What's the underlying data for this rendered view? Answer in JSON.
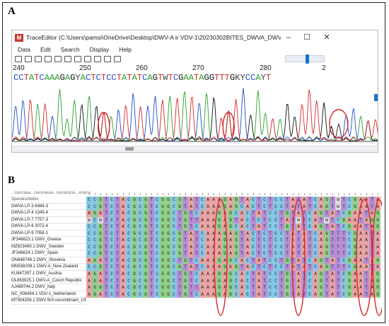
{
  "figure": {
    "panel_a_label": "A",
    "panel_b_label": "B"
  },
  "trace_editor": {
    "window_title": "TraceEditor (C:\\Users\\pamsi\\OneDrive\\Desktop\\DWV-A ir VDV-1\\20230302BITES_DWVA_DWVB\\A1_DW...",
    "app_icon_label": "M",
    "controls": {
      "minimize": "–",
      "maximize": "☐",
      "close": "✕"
    },
    "menu": [
      "Data",
      "Edit",
      "Search",
      "Display",
      "Help"
    ],
    "toolbar_icons": [
      "open-icon",
      "save-icon",
      "print-icon",
      "print-preview-icon",
      "revert-icon",
      "undo-icon",
      "redo-icon",
      "find-icon",
      "replace-icon",
      "edit-icon",
      "help-icon"
    ],
    "ruler_labels": [
      "240",
      "250",
      "260",
      "270",
      "280",
      "2"
    ],
    "sequence": "CCTATCAAAGAGYACTCTCCTATATCAGTWTCGAATAGGTTTGKYCCAYT"
  },
  "colors": {
    "A": "#2ca02c",
    "C": "#1f4fd1",
    "G": "#111111",
    "T": "#d62728",
    "ambiguous": "#444444",
    "highlight": "#d62728"
  },
  "alignment": {
    "cut_header": "...ilaricaaa...naraneiaa...vananana...enana",
    "column_header": "Species/Abbrv",
    "sequence_names": [
      "DWVA LP-3 6484-3",
      "DWVA LP-4 1345-4",
      "DWVA LP-7 7757-3",
      "DWVA LP-8 3072-4",
      "DWVA LP-9 7058-1",
      "JF346623.1 DWV_Greece",
      "MZ823490.1 DWV_Sweden",
      "JF346624.1 DWV_Spain",
      "ON648748.1 DWV_Slovenia",
      "MN538208.1 DWV-A_New Zealand",
      "KU847397.1 DWV_Austria",
      "OL863925.1 DWV-A_Czech Republic",
      "AJ489744.2 DWV_Italy",
      "NC_006494.1 VDV-1_Netherlands",
      "MT904256.1 DWV B/A recombinant_USA"
    ],
    "sequences": [
      "CCGTCTACGCGTCGGCGTATCAAAGAGTACTCTCCTATATCAGTWTCGAATAGGTTTGKYCCAYTGTT",
      "CCGTCTACGCGTCGGCGTATCAAAGAGCACTCTCCTATATCAGTWTCGAATAGGTTTGKYCCAYTGTT",
      "AGATCTACGCGTCGGCTGTCAAAGAGCACTATCCTGTATCAGTATCGAATAGGTTTGATCCGTTGTT",
      "WCWTCTACGCGTCGGCTGTTAAAGAGTACTCTCCTATWTCATWTCGAATAGGTTTGACCCGTTGTT",
      "CCGTCTACGCGTCGGCTGTCAAAGAGCACTATCCTGTATCAGTATCGAATAGGTTTGGCCCATTGTT",
      "CCGTCTACGCGTCGGCGTATCAAAGAGTACTCTCCTATATCAGTTTCGAATAGGTTTGTCCCACTGTT",
      "CCGTCTACGCGTCGGCGTATCAAAGAGTACTCTCCTATATCAGTTTCGAATAGGTTTGTCCCACTGTT",
      "CCGTCTACGCGTCGGCGTATCAAAGAGTACTCTCCTATATCAGTTTCGAATAGGTTTGTCCCACTGTT",
      "CCGTCTACGCGTCGGCGTATCAAAGAGTACTCTCCTATATCAGTTTCGAATAGGTTTGTCCCACTGTT",
      "AGATCTACGCGTCGGCTGTCAAAGAGCACTATCCTGTATCAGTATCGAATAGGTTTGATCCGTTGTT",
      "CCGTCTACGCGTCGGCGTATCAAAGAGTACTCTCCTATATCAGTTTCGAATAGGTTTGTCCCACTGTT",
      "AGATCTACGCGTCGGCTGTCAAAGAGCACTATCCTGTATCAGTATCGAATAGGTTTGATCCGTTGTT",
      "AGATCTACGCGTCGGCTGTCAAAGAGCACTATCCTGTATCAGTATCGAATAGGTTTGATCCGTTGTT",
      "AGGTCTACGCGTCGGCTGTTAAAGAGCACTATCCTGTATCAGTATCGAATAGGTTTGATCCGTTGTT",
      "AGATCTACGCGTCGGCTGTCAAAGAGCACTATCCTGTATCAGTATCGAATAGGTTTGATCCGTTGTT"
    ],
    "base_colors": {
      "A": "#e9a3a3",
      "C": "#86c8e6",
      "G": "#8fd08a",
      "T": "#b58fd6",
      "other": "#dcdcdc"
    }
  }
}
